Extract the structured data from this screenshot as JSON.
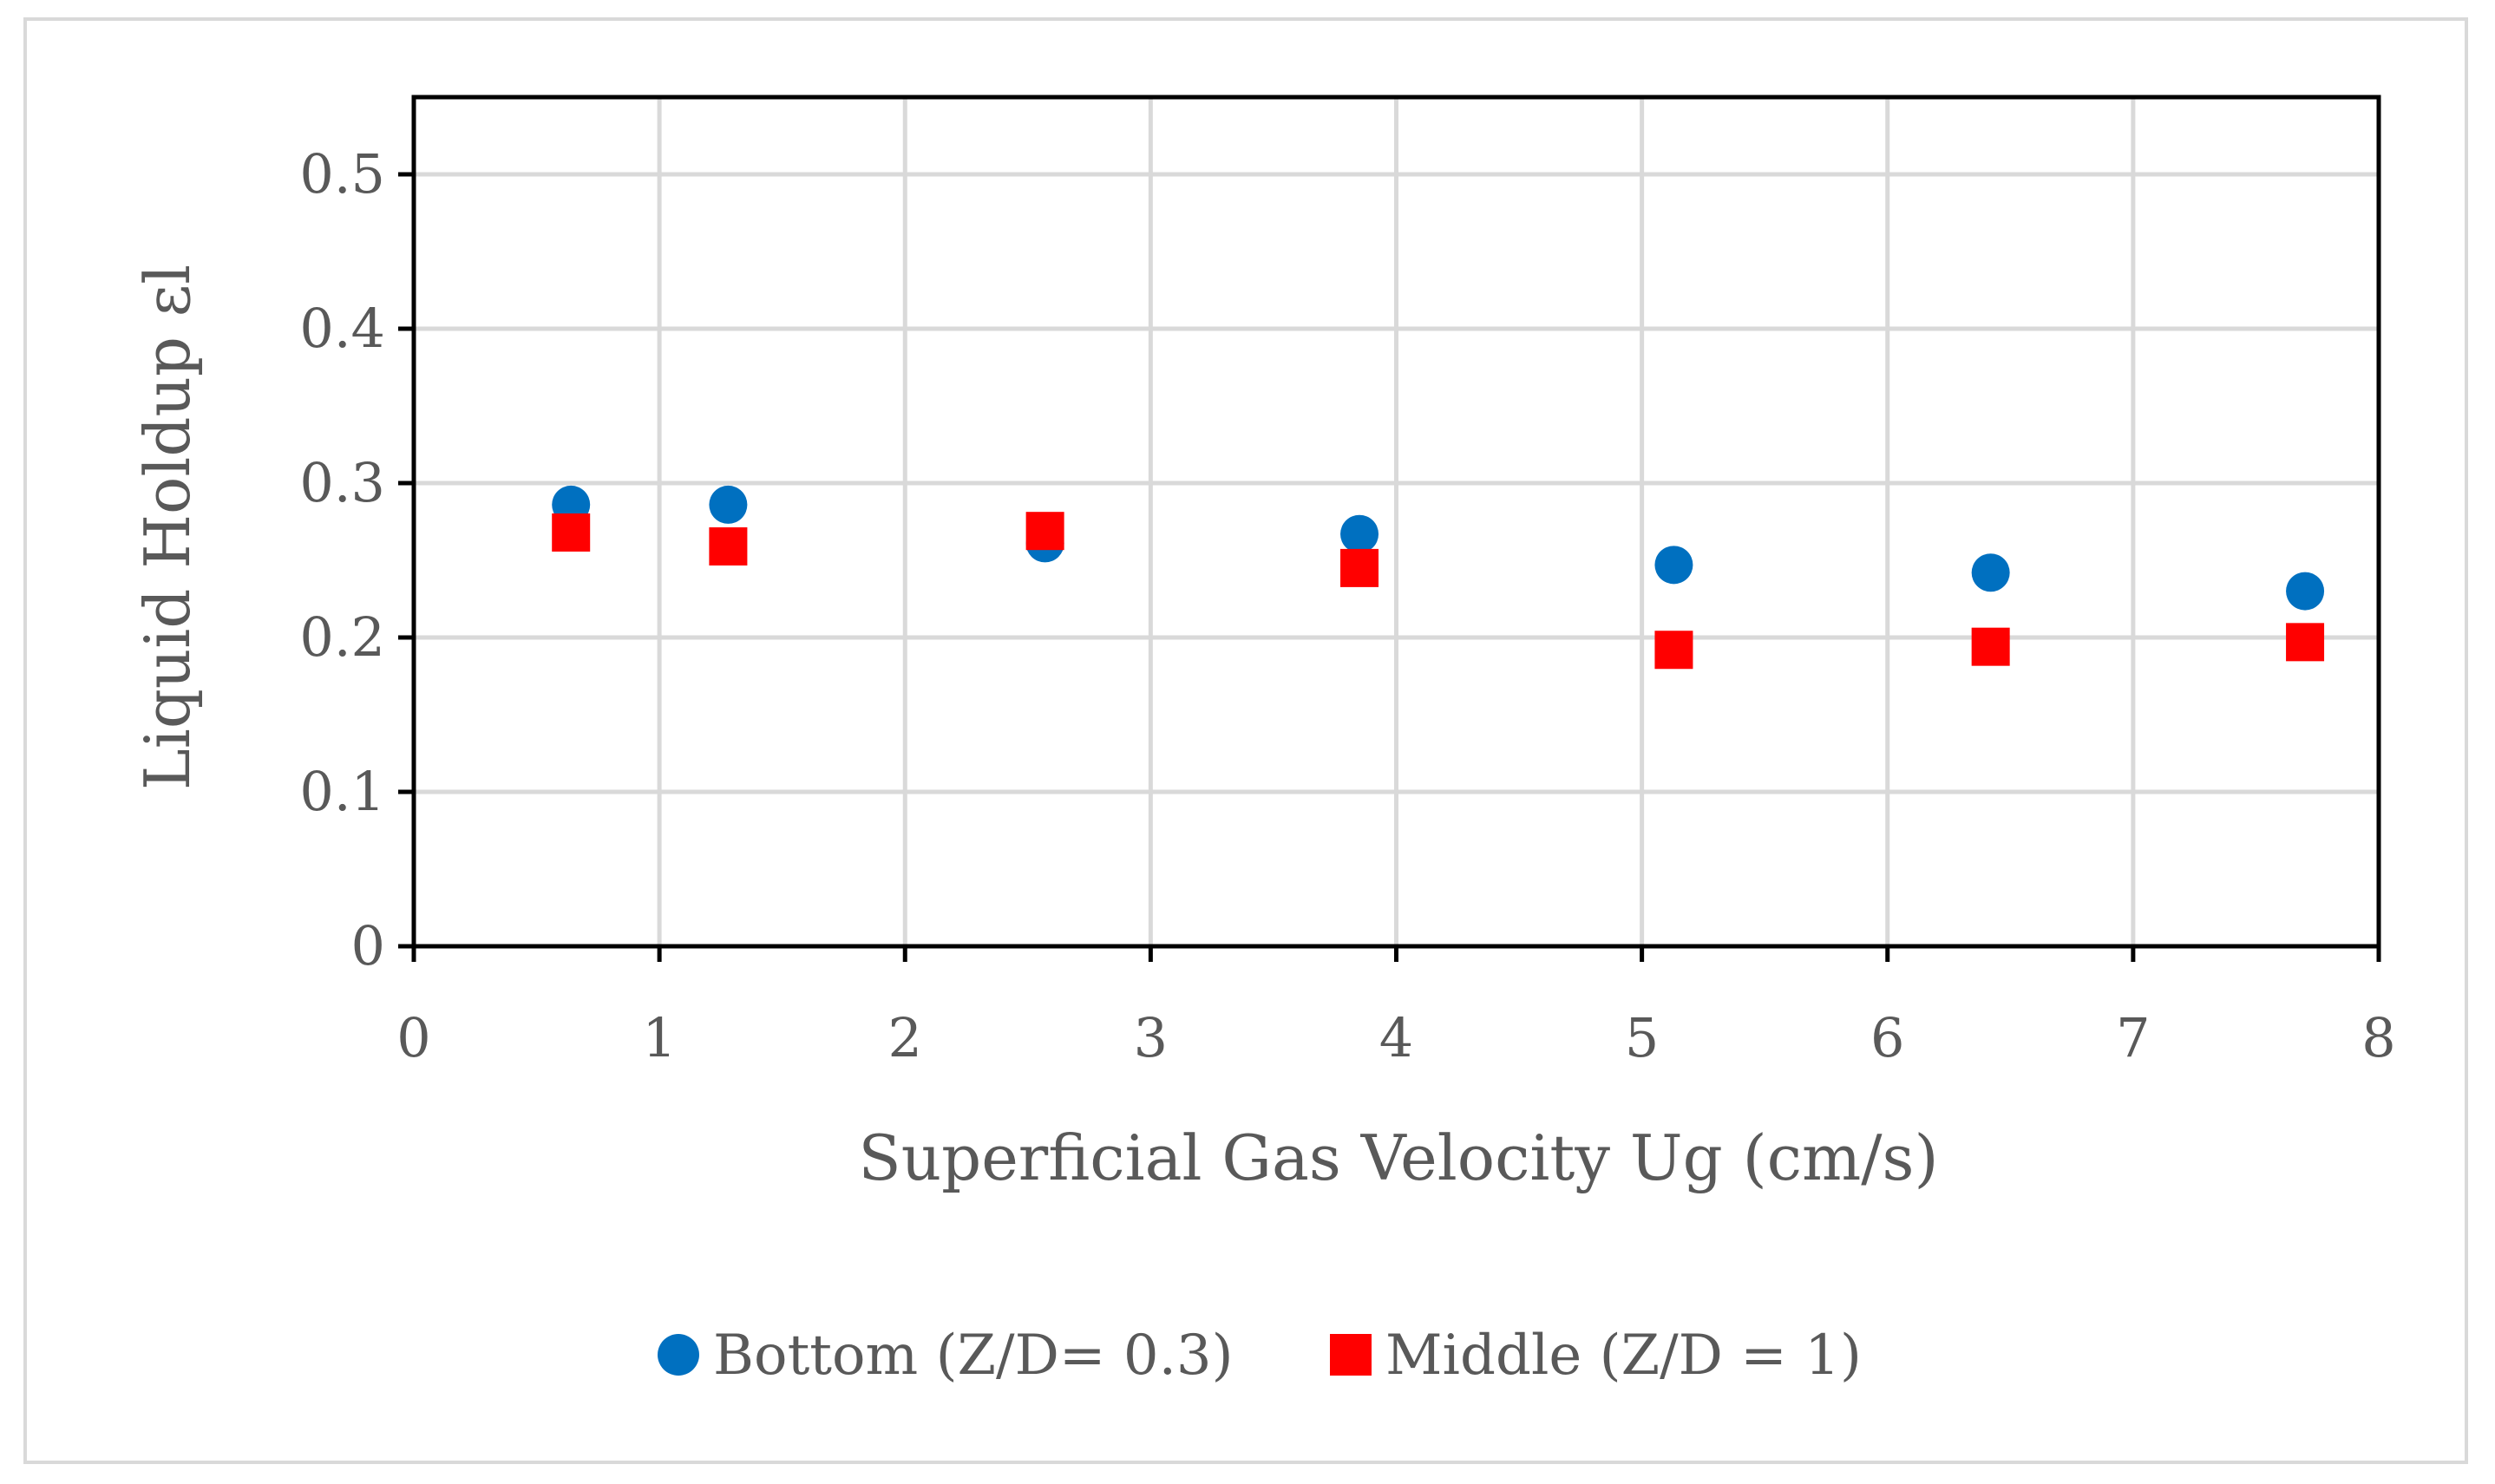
{
  "chart_data": {
    "type": "scatter",
    "title": "",
    "xlabel": "Superficial Gas Velocity Ug (cm/s)",
    "ylabel": "Liquid Holdup εl",
    "xlim": [
      0,
      8
    ],
    "ylim": [
      0,
      0.55
    ],
    "x_ticks": [
      0,
      1,
      2,
      3,
      4,
      5,
      6,
      7,
      8
    ],
    "x_tick_labels": [
      "0",
      "1",
      "2",
      "3",
      "4",
      "5",
      "6",
      "7",
      "8"
    ],
    "y_ticks": [
      0,
      0.1,
      0.2,
      0.3,
      0.4,
      0.5
    ],
    "y_tick_labels": [
      "0",
      "0.1",
      "0.2",
      "0.3",
      "0.4",
      "0.5"
    ],
    "grid": true,
    "legend_position": "bottom-center",
    "series": [
      {
        "name": "Bottom (Z/D= 0.3)",
        "marker": "circle",
        "color": "#0070c0",
        "x": [
          0.64,
          1.28,
          2.57,
          3.85,
          5.13,
          6.42,
          7.7
        ],
        "y": [
          0.286,
          0.286,
          0.261,
          0.267,
          0.247,
          0.242,
          0.23
        ]
      },
      {
        "name": "Middle (Z/D = 1)",
        "marker": "square",
        "color": "#ff0000",
        "x": [
          0.64,
          1.28,
          2.57,
          3.85,
          5.13,
          6.42,
          7.7
        ],
        "y": [
          0.268,
          0.259,
          0.269,
          0.245,
          0.192,
          0.194,
          0.197
        ]
      }
    ]
  }
}
